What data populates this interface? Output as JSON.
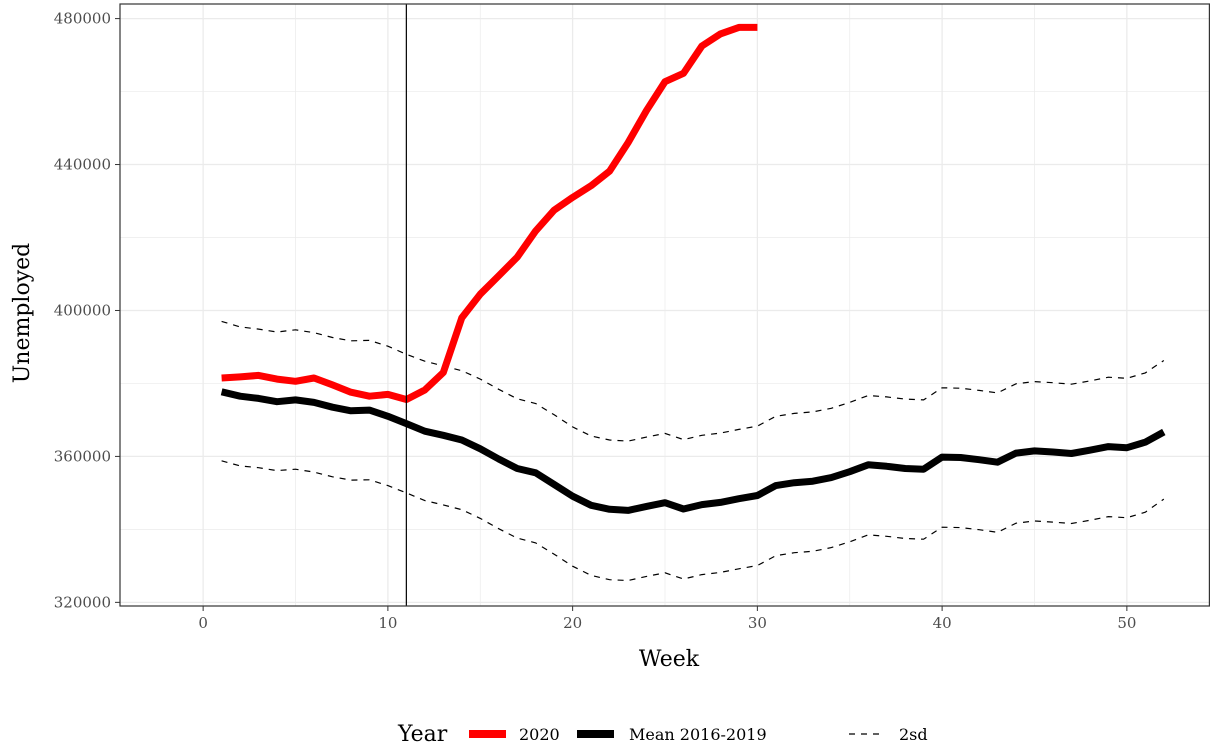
{
  "chart_data": {
    "type": "line",
    "xlabel": "Week",
    "ylabel": "Unemployed",
    "xlim": [
      -4.5,
      54.5
    ],
    "ylim": [
      319000,
      484000
    ],
    "x_ticks": [
      0,
      10,
      20,
      30,
      40,
      50
    ],
    "x_tick_labels": [
      "0",
      "10",
      "20",
      "30",
      "40",
      "50"
    ],
    "x_minor_ticks": [
      5,
      15,
      25,
      35,
      45
    ],
    "y_ticks": [
      320000,
      360000,
      400000,
      440000,
      480000
    ],
    "y_tick_labels": [
      "320000",
      "360000",
      "400000",
      "440000",
      "480000"
    ],
    "y_minor_ticks": [
      340000,
      380000,
      420000,
      460000
    ],
    "grid": true,
    "vline_x": 11,
    "legend": {
      "title": "Year",
      "position": "bottom",
      "entries": [
        {
          "label": "2020",
          "style": "thick-red"
        },
        {
          "label": "Mean 2016-2019",
          "style": "thick-black"
        },
        {
          "label": "2sd",
          "style": "dashed"
        }
      ]
    },
    "colors": {
      "series_2020": "#ff0000",
      "mean": "#000000",
      "band": "#000000",
      "grid": "#ebebeb",
      "tick_text": "#4d4d4d"
    },
    "series": [
      {
        "name": "2020",
        "x": [
          1,
          2,
          3,
          4,
          5,
          6,
          7,
          8,
          9,
          10,
          11,
          12,
          13,
          14,
          15,
          16,
          17,
          18,
          19,
          20,
          21,
          22,
          23,
          24,
          25,
          26,
          27,
          28,
          29,
          30
        ],
        "values": [
          381500,
          381800,
          382200,
          381200,
          380600,
          381500,
          379600,
          377600,
          376500,
          377000,
          375600,
          378200,
          383000,
          398000,
          404500,
          409500,
          414600,
          421800,
          427500,
          431000,
          434200,
          438200,
          446000,
          454800,
          462700,
          465000,
          472500,
          475800,
          477600,
          477600
        ]
      },
      {
        "name": "Mean 2016-2019",
        "x": [
          1,
          2,
          3,
          4,
          5,
          6,
          7,
          8,
          9,
          10,
          11,
          12,
          13,
          14,
          15,
          16,
          17,
          18,
          19,
          20,
          21,
          22,
          23,
          24,
          25,
          26,
          27,
          28,
          29,
          30,
          31,
          32,
          33,
          34,
          35,
          36,
          37,
          38,
          39,
          40,
          41,
          42,
          43,
          44,
          45,
          46,
          47,
          48,
          49,
          50,
          51,
          52
        ],
        "values": [
          377700,
          376500,
          375900,
          375000,
          375500,
          374800,
          373500,
          372500,
          372700,
          371000,
          369000,
          366900,
          365800,
          364500,
          362100,
          359300,
          356700,
          355500,
          352300,
          349100,
          346600,
          345500,
          345200,
          346300,
          347300,
          345600,
          346800,
          347400,
          348400,
          349300,
          352000,
          352800,
          353200,
          354200,
          355800,
          357700,
          357300,
          356700,
          356500,
          359800,
          359700,
          359100,
          358400,
          360900,
          361500,
          361200,
          360800,
          361700,
          362700,
          362400,
          363900,
          366700
        ]
      },
      {
        "name": "upper",
        "style": "dashed",
        "x": [
          1,
          2,
          3,
          4,
          5,
          6,
          7,
          8,
          9,
          10,
          11,
          12,
          13,
          14,
          15,
          16,
          17,
          18,
          19,
          20,
          21,
          22,
          23,
          24,
          25,
          26,
          27,
          28,
          29,
          30,
          31,
          32,
          33,
          34,
          35,
          36,
          37,
          38,
          39,
          40,
          41,
          42,
          43,
          44,
          45,
          46,
          47,
          48,
          49,
          50,
          51,
          52
        ],
        "values": [
          397000,
          395500,
          394900,
          394100,
          394700,
          393900,
          392600,
          391700,
          391800,
          390200,
          388000,
          386100,
          384800,
          383500,
          381200,
          378400,
          375800,
          374500,
          371400,
          368100,
          365600,
          364500,
          364200,
          365300,
          366300,
          364600,
          365800,
          366400,
          367400,
          368300,
          371000,
          371800,
          372200,
          373200,
          374800,
          376700,
          376300,
          375700,
          375500,
          378800,
          378700,
          378100,
          377400,
          379900,
          380500,
          380200,
          379800,
          380700,
          381700,
          381400,
          382900,
          386300
        ]
      },
      {
        "name": "lower",
        "style": "dashed",
        "x": [
          1,
          2,
          3,
          4,
          5,
          6,
          7,
          8,
          9,
          10,
          11,
          12,
          13,
          14,
          15,
          16,
          17,
          18,
          19,
          20,
          21,
          22,
          23,
          24,
          25,
          26,
          27,
          28,
          29,
          30,
          31,
          32,
          33,
          34,
          35,
          36,
          37,
          38,
          39,
          40,
          41,
          42,
          43,
          44,
          45,
          46,
          47,
          48,
          49,
          50,
          51,
          52
        ],
        "values": [
          358800,
          357400,
          356900,
          356100,
          356500,
          355700,
          354400,
          353500,
          353600,
          352000,
          350000,
          347900,
          346700,
          345400,
          343000,
          340200,
          337600,
          336300,
          333200,
          329900,
          327400,
          326200,
          326000,
          327100,
          328100,
          326400,
          327600,
          328200,
          329200,
          330100,
          332800,
          333600,
          334000,
          335000,
          336600,
          338500,
          338100,
          337500,
          337300,
          340600,
          340500,
          339900,
          339200,
          341700,
          342300,
          342000,
          341600,
          342500,
          343500,
          343200,
          344700,
          348300
        ]
      }
    ]
  }
}
